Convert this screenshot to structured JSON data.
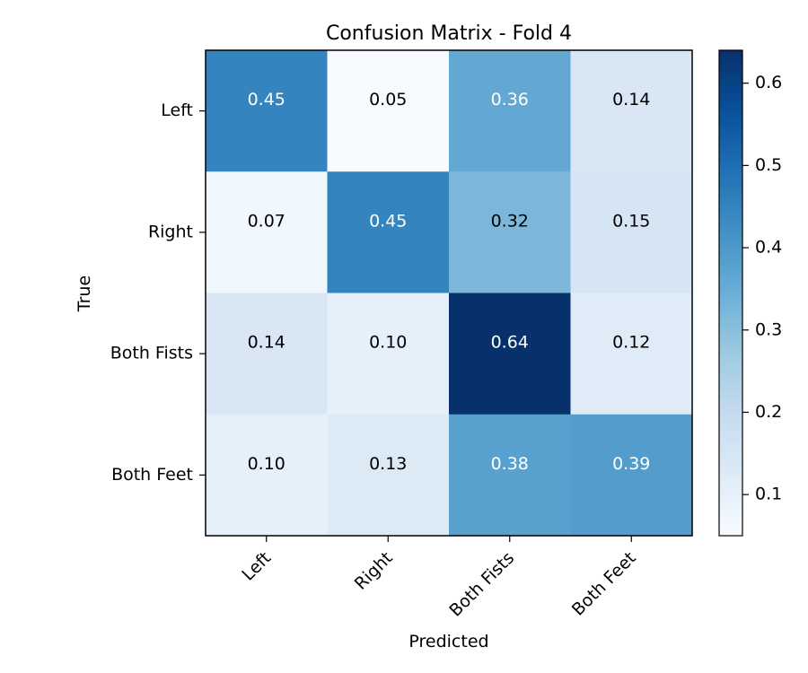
{
  "chart_data": {
    "type": "heatmap",
    "title": "Confusion Matrix - Fold 4",
    "xlabel": "Predicted",
    "ylabel": "True",
    "x_categories": [
      "Left",
      "Right",
      "Both Fists",
      "Both Feet"
    ],
    "y_categories": [
      "Left",
      "Right",
      "Both Fists",
      "Both Feet"
    ],
    "values": [
      [
        0.45,
        0.05,
        0.36,
        0.14
      ],
      [
        0.07,
        0.45,
        0.32,
        0.15
      ],
      [
        0.14,
        0.1,
        0.64,
        0.12
      ],
      [
        0.1,
        0.13,
        0.38,
        0.39
      ]
    ],
    "value_labels": [
      [
        "0.45",
        "0.05",
        "0.36",
        "0.14"
      ],
      [
        "0.07",
        "0.45",
        "0.32",
        "0.15"
      ],
      [
        "0.14",
        "0.10",
        "0.64",
        "0.12"
      ],
      [
        "0.10",
        "0.13",
        "0.38",
        "0.39"
      ]
    ],
    "colormap": "Blues",
    "colorbar": {
      "range": [
        0.05,
        0.64
      ],
      "ticks": [
        0.1,
        0.2,
        0.3,
        0.4,
        0.5,
        0.6
      ],
      "tick_labels": [
        "0.1",
        "0.2",
        "0.3",
        "0.4",
        "0.5",
        "0.6"
      ]
    },
    "text_colors": {
      "dark_cell": "#ffffff",
      "light_cell": "#000000"
    }
  }
}
